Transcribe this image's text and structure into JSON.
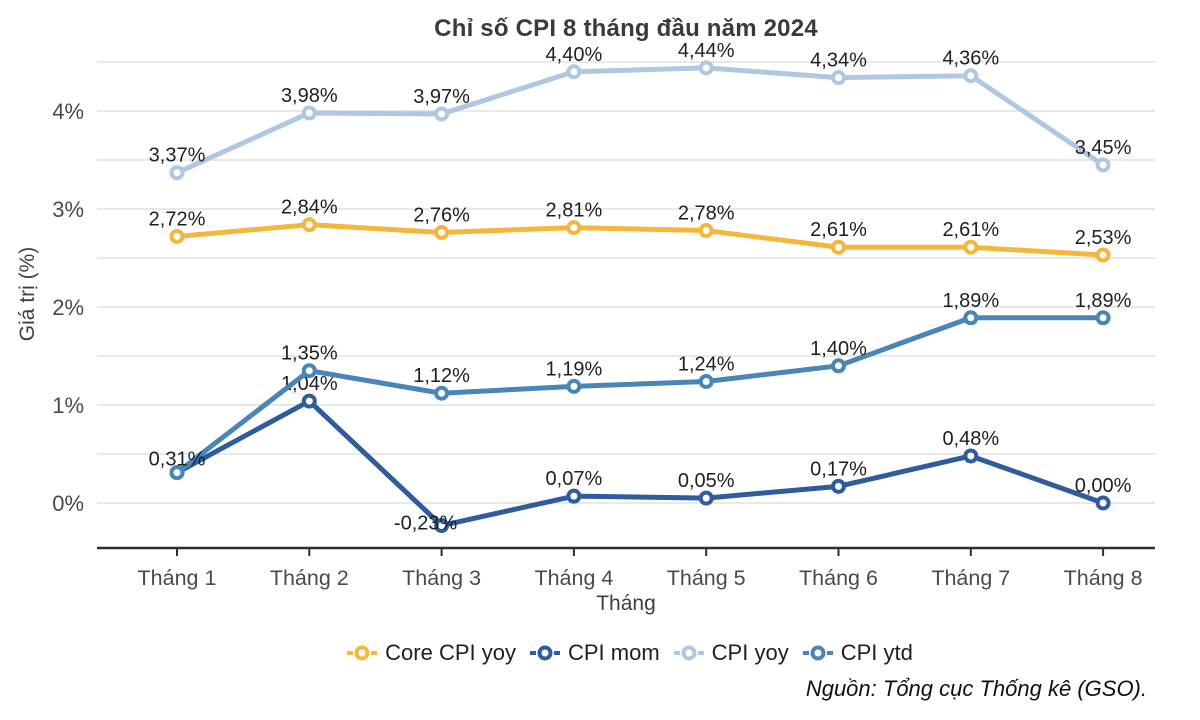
{
  "chart_data": {
    "type": "line",
    "title": "Chỉ số CPI 8 tháng đầu năm 2024",
    "xlabel": "Tháng",
    "ylabel": "Giá trị (%)",
    "categories": [
      "Tháng 1",
      "Tháng 2",
      "Tháng 3",
      "Tháng 4",
      "Tháng 5",
      "Tháng 6",
      "Tháng 7",
      "Tháng 8"
    ],
    "ytick_labels": [
      "0%",
      "1%",
      "2%",
      "3%",
      "4%"
    ],
    "ylim": [
      -0.46,
      4.6
    ],
    "gridline_step": 0.5,
    "grid": true,
    "legend_position": "bottom",
    "series": [
      {
        "name": "Core CPI yoy",
        "color": "#F5B63C",
        "values": [
          2.72,
          2.84,
          2.76,
          2.81,
          2.78,
          2.61,
          2.61,
          2.53
        ],
        "labels": [
          "2,72%",
          "2,84%",
          "2,76%",
          "2,81%",
          "2,78%",
          "2,61%",
          "2,61%",
          "2,53%"
        ]
      },
      {
        "name": "CPI mom",
        "color": "#2E5C9E",
        "values": [
          0.31,
          1.04,
          -0.23,
          0.07,
          0.05,
          0.17,
          0.48,
          0.0
        ],
        "labels": [
          "",
          "1,04%",
          "-0,23%",
          "0,07%",
          "0,05%",
          "0,17%",
          "0,48%",
          "0,00%"
        ],
        "label_offsets": {
          "2": [
            -16,
            15
          ]
        }
      },
      {
        "name": "CPI yoy",
        "color": "#AFC7E2",
        "values": [
          3.37,
          3.98,
          3.97,
          4.4,
          4.44,
          4.34,
          4.36,
          3.45
        ],
        "labels": [
          "3,37%",
          "3,98%",
          "3,97%",
          "4,40%",
          "4,44%",
          "4,34%",
          "4,36%",
          "3,45%"
        ]
      },
      {
        "name": "CPI ytd",
        "color": "#4A85B8",
        "values": [
          0.31,
          1.35,
          1.12,
          1.19,
          1.24,
          1.4,
          1.89,
          1.89
        ],
        "labels": [
          "0,31%",
          "1,35%",
          "1,12%",
          "1,19%",
          "1,24%",
          "1,40%",
          "1,89%",
          "1,89%"
        ],
        "label_offsets": {
          "0": [
            0,
            4
          ]
        }
      }
    ],
    "colors": {
      "grid": "#E2E2E2",
      "axis": "#2F2F2F",
      "tick_text": "#4a4a4a",
      "data_label_text": "#1f1f1f"
    },
    "source_note": "Nguồn: Tổng cục Thống kê (GSO)."
  }
}
